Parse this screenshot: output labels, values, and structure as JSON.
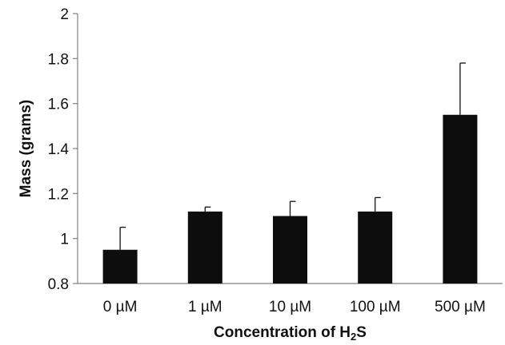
{
  "chart_data": {
    "type": "bar",
    "categories": [
      "0 µM",
      "1 µM",
      "10 µM",
      "100 µM",
      "500 µM"
    ],
    "values": [
      0.95,
      1.12,
      1.1,
      1.12,
      1.55
    ],
    "error_upper": [
      0.1,
      0.02,
      0.065,
      0.062,
      0.23
    ],
    "ylim": [
      0.8,
      2.0
    ],
    "yticks": [
      "0.8",
      "1",
      "1.2",
      "1.4",
      "1.6",
      "1.8",
      "2"
    ],
    "ylabel": "Mass (grams)",
    "xlabel_main": "Concentration of H",
    "xlabel_sub": "2",
    "xlabel_tail": "S",
    "colors": {
      "bar": "#0d0d0d",
      "axis": "#808080",
      "text": "#111111"
    },
    "grid": false,
    "legend": "none"
  }
}
